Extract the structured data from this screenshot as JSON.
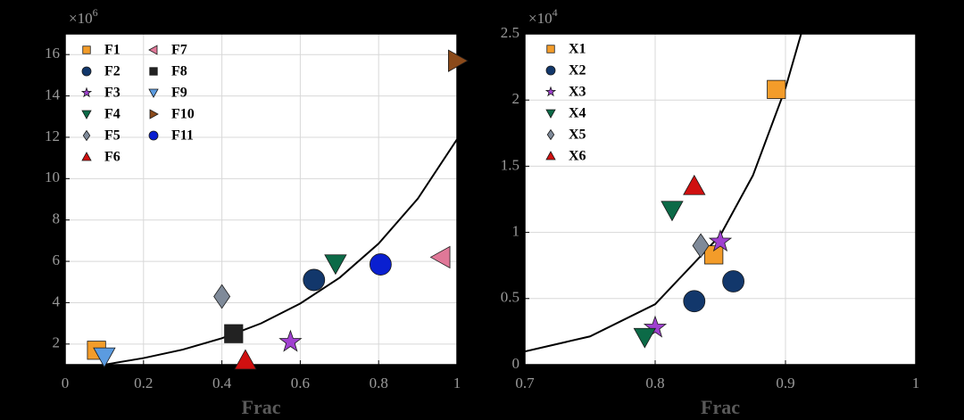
{
  "chart_data": [
    {
      "type": "scatter",
      "xlabel": "Frac",
      "y_multiplier": "×10",
      "y_exponent": "6",
      "xlim": [
        0,
        1
      ],
      "ylim": [
        1,
        17
      ],
      "xticks": [
        0,
        0.2,
        0.4,
        0.6,
        0.8,
        1
      ],
      "yticks": [
        2,
        4,
        6,
        8,
        10,
        12,
        14,
        16
      ],
      "grid": true,
      "series": [
        {
          "name": "F1",
          "color": "#f39c2a",
          "marker": "square",
          "x": [
            0.08
          ],
          "values": [
            1.7
          ]
        },
        {
          "name": "F2",
          "color": "#12376b",
          "marker": "circle",
          "x": [
            0.635
          ],
          "values": [
            5.1
          ]
        },
        {
          "name": "F3",
          "color": "#a040d0",
          "marker": "star",
          "x": [
            0.575
          ],
          "values": [
            2.1
          ]
        },
        {
          "name": "F4",
          "color": "#0c6a47",
          "marker": "triangle-down",
          "x": [
            0.69
          ],
          "values": [
            5.9
          ]
        },
        {
          "name": "F5",
          "color": "#7f8a99",
          "marker": "diamond",
          "x": [
            0.4
          ],
          "values": [
            4.3
          ]
        },
        {
          "name": "F6",
          "color": "#d01010",
          "marker": "triangle-up",
          "x": [
            0.46
          ],
          "values": [
            1.2
          ]
        },
        {
          "name": "F7",
          "color": "#e07898",
          "marker": "triangle-left",
          "x": [
            0.96
          ],
          "values": [
            6.2
          ]
        },
        {
          "name": "F8",
          "color": "#222222",
          "marker": "square",
          "x": [
            0.43
          ],
          "values": [
            2.5
          ]
        },
        {
          "name": "F9",
          "color": "#5b9be0",
          "marker": "triangle-down",
          "x": [
            0.1
          ],
          "values": [
            1.4
          ]
        },
        {
          "name": "F10",
          "color": "#8b4a1a",
          "marker": "triangle-right",
          "x": [
            1.0
          ],
          "values": [
            15.7
          ]
        },
        {
          "name": "F11",
          "color": "#0a1fd0",
          "marker": "circle",
          "x": [
            0.805
          ],
          "values": [
            5.85
          ]
        }
      ],
      "curve": {
        "color": "#000000",
        "x": [
          0.1,
          0.2,
          0.3,
          0.4,
          0.5,
          0.6,
          0.7,
          0.8,
          0.9,
          1.0
        ],
        "values": [
          1.0,
          1.32,
          1.73,
          2.28,
          3.0,
          3.96,
          5.2,
          6.86,
          9.03,
          11.9
        ]
      }
    },
    {
      "type": "scatter",
      "xlabel": "Frac",
      "y_multiplier": "×10",
      "y_exponent": "4",
      "xlim": [
        0.7,
        1
      ],
      "ylim": [
        0,
        2.5
      ],
      "xticks": [
        0.7,
        0.8,
        0.9,
        1
      ],
      "yticks": [
        0,
        0.5,
        1,
        1.5,
        2,
        2.5
      ],
      "grid": true,
      "series": [
        {
          "name": "X1",
          "color": "#f39c2a",
          "marker": "square",
          "x": [
            0.893,
            0.845
          ],
          "values": [
            2.08,
            0.83
          ]
        },
        {
          "name": "X2",
          "color": "#12376b",
          "marker": "circle",
          "x": [
            0.83,
            0.86
          ],
          "values": [
            0.48,
            0.63
          ]
        },
        {
          "name": "X3",
          "color": "#a040d0",
          "marker": "star",
          "x": [
            0.8,
            0.85
          ],
          "values": [
            0.28,
            0.93
          ]
        },
        {
          "name": "X4",
          "color": "#0c6a47",
          "marker": "triangle-down",
          "x": [
            0.792,
            0.813
          ],
          "values": [
            0.21,
            1.17
          ]
        },
        {
          "name": "X5",
          "color": "#7f8a99",
          "marker": "diamond",
          "x": [
            0.835
          ],
          "values": [
            0.9
          ]
        },
        {
          "name": "X6",
          "color": "#d01010",
          "marker": "triangle-up",
          "x": [
            0.83
          ],
          "values": [
            1.35
          ]
        }
      ],
      "curve": {
        "color": "#000000",
        "x": [
          0.7,
          0.75,
          0.8,
          0.85,
          0.875,
          0.9,
          0.912
        ],
        "values": [
          0.1,
          0.214,
          0.457,
          0.978,
          1.43,
          2.09,
          2.5
        ]
      }
    }
  ]
}
